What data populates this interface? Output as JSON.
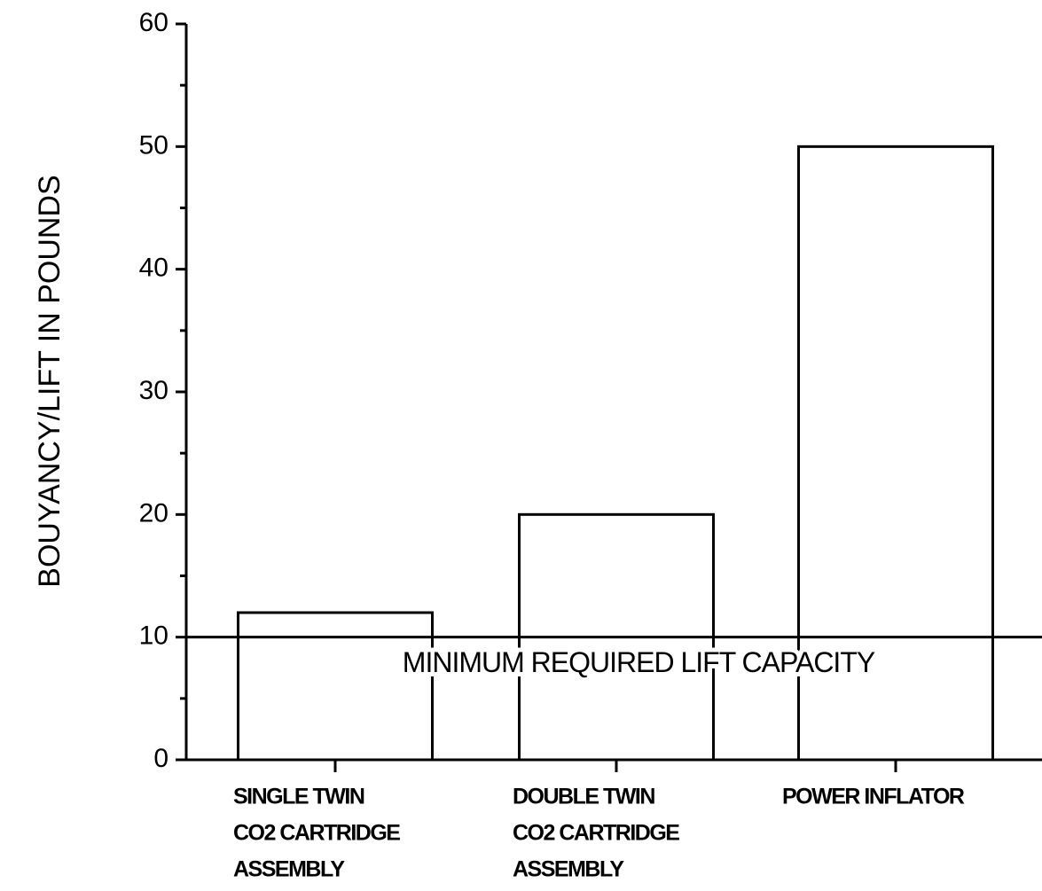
{
  "chart_data": {
    "type": "bar",
    "y_label": "BOUYANCY/LIFT IN POUNDS",
    "categories": [
      [
        "SINGLE TWIN",
        "CO2 CARTRIDGE",
        "ASSEMBLY"
      ],
      [
        "DOUBLE TWIN",
        "CO2 CARTRIDGE",
        "ASSEMBLY"
      ],
      [
        "POWER INFLATOR"
      ]
    ],
    "values": [
      12,
      20,
      50
    ],
    "color": "#ffffff",
    "ylim": [
      0,
      60
    ],
    "yticks": [
      0,
      10,
      20,
      30,
      40,
      50,
      60
    ],
    "reference_line": {
      "value": 10,
      "label": "MINIMUM REQUIRED LIFT CAPACITY"
    },
    "grid": false
  }
}
